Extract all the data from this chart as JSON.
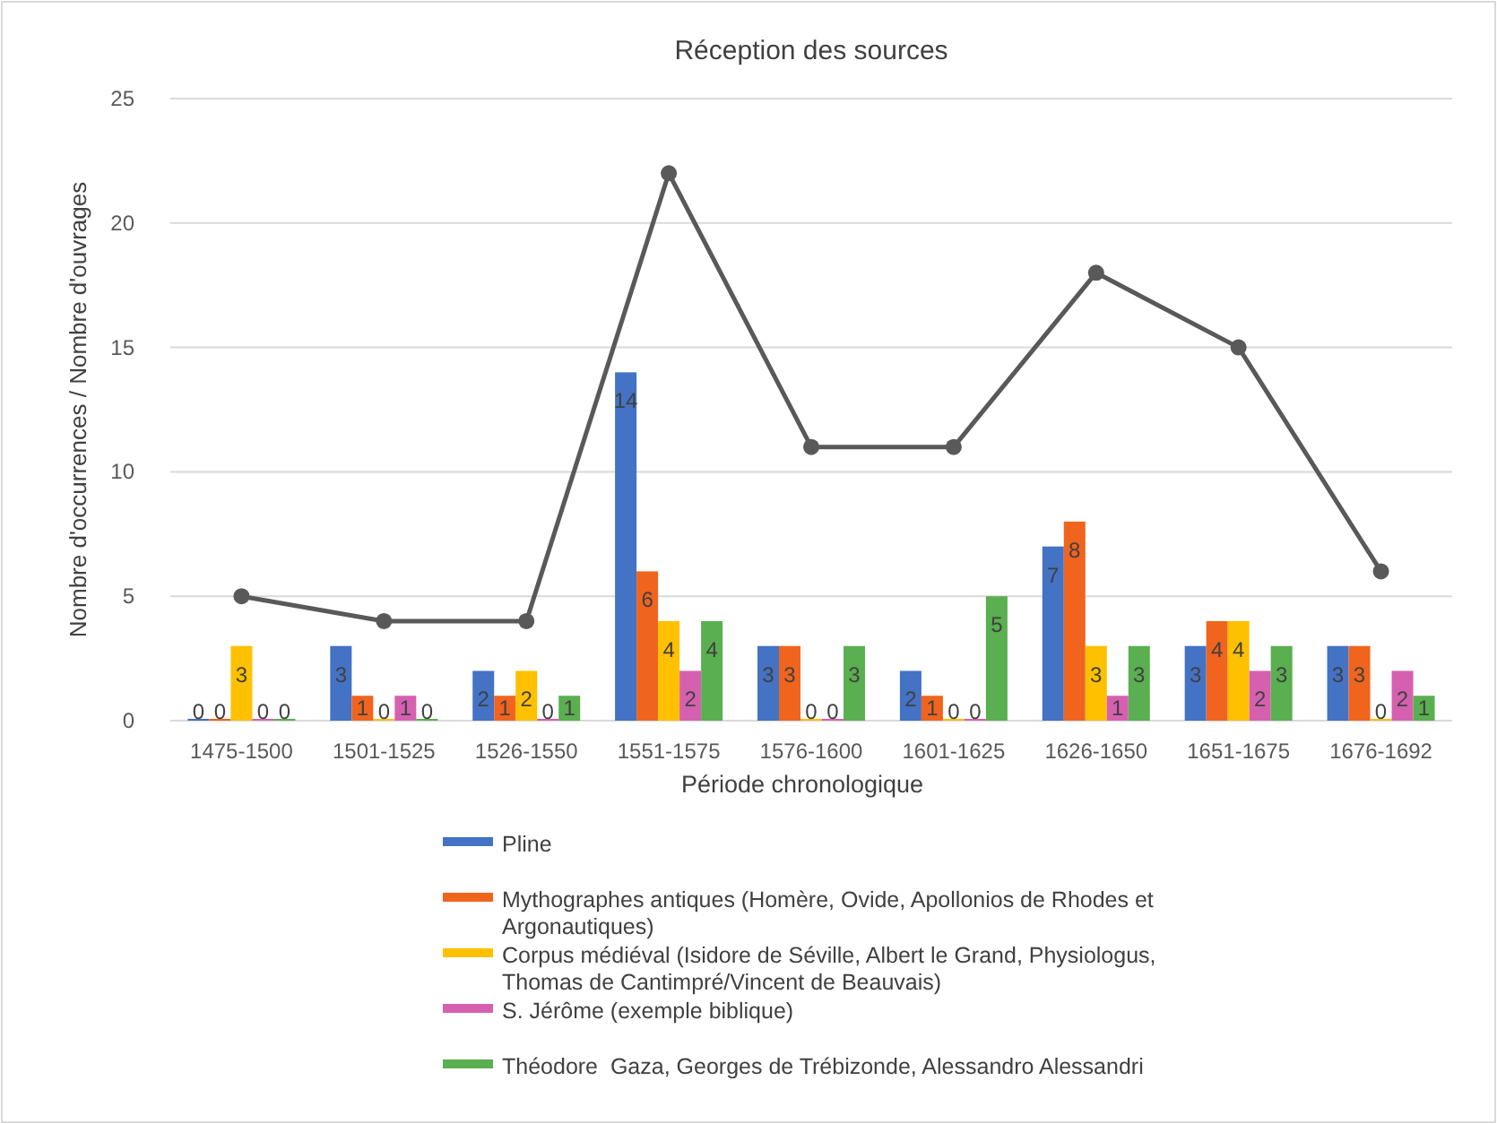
{
  "chart_data": {
    "type": "bar",
    "title": "Réception des sources",
    "xlabel": "Période chronologique",
    "ylabel": "Nombre d'occurrences / Nombre d'ouvrages",
    "categories": [
      "1475-1500",
      "1501-1525",
      "1526-1550",
      "1551-1575",
      "1576-1600",
      "1601-1625",
      "1626-1650",
      "1651-1675",
      "1676-1692"
    ],
    "ylim": [
      0,
      25
    ],
    "yticks": [
      0,
      5,
      10,
      15,
      20,
      25
    ],
    "grid": "y",
    "legend": "bottom",
    "series": [
      {
        "name": "Pline",
        "color": "#4472c4",
        "values": [
          0,
          3,
          2,
          14,
          3,
          2,
          7,
          3,
          3
        ],
        "value_labels": [
          "0",
          "3",
          "2",
          "14",
          "3",
          "2",
          "7",
          "3",
          "3"
        ]
      },
      {
        "name": "Mythographes antiques (Homère, Ovide, Apollonios de Rhodes et Argonautiques)",
        "color": "#f0641e",
        "values": [
          0,
          1,
          1,
          6,
          3,
          1,
          8,
          4,
          3
        ],
        "value_labels": [
          "0",
          "1",
          "1",
          "6",
          "3",
          "1",
          "8",
          "4",
          "3"
        ]
      },
      {
        "name": "Corpus médiéval (Isidore de Séville, Albert le Grand, Physiologus, Thomas de Cantimpré/Vincent de Beauvais)",
        "color": "#ffc000",
        "values": [
          3,
          0,
          2,
          4,
          0,
          0,
          3,
          4,
          0
        ],
        "value_labels": [
          "3",
          "0",
          "2",
          "4",
          "0",
          "0",
          "3",
          "4",
          "0"
        ]
      },
      {
        "name": "S. Jérôme (exemple biblique)",
        "color": "#d660b0",
        "values": [
          0,
          1,
          0,
          2,
          0,
          0,
          1,
          2,
          2
        ],
        "value_labels": [
          "0",
          "1",
          "0",
          "2",
          "0",
          "0",
          "1",
          "2",
          "2"
        ]
      },
      {
        "name": "Théodore  Gaza, Georges de Trébizonde, Alessandro Alessandri",
        "color": "#5aaf50",
        "values": [
          0,
          0,
          1,
          4,
          3,
          5,
          3,
          3,
          1
        ],
        "value_labels": [
          "0",
          "0",
          "1",
          "4",
          "3",
          "5",
          "3",
          "3",
          "1"
        ]
      },
      {
        "type": "line",
        "color": "#595959",
        "values": [
          5,
          4,
          4,
          22,
          11,
          11,
          18,
          15,
          6
        ],
        "marker": "circle",
        "line_style": "solid"
      }
    ]
  }
}
